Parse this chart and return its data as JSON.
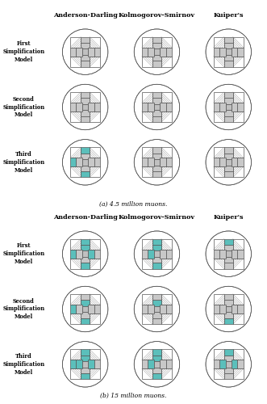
{
  "col_labels": [
    "Anderson-Darling",
    "Kolmogorov-Smirnov",
    "Kuiper's"
  ],
  "row_labels": [
    "First\nSimplification\nModel",
    "Second\nSimplification\nModel",
    "Third\nSimplification\nModel"
  ],
  "caption_a": "(a) 4.5 million muons.",
  "caption_b": "(b) 15 million muons.",
  "turquoise": "#5bbfbb",
  "gray_fa": "#c8c8c8",
  "gray_center": "#c0c0c0",
  "circle_edge": "#555555",
  "line_color": "#888888",
  "bg_color": "#ffffff",
  "rejected_4p5": [
    [
      [
        0,
        0,
        0,
        0,
        0,
        0,
        0,
        0,
        0,
        0,
        0,
        0,
        0
      ],
      [
        0,
        0,
        0,
        0,
        0,
        0,
        0,
        0,
        0,
        0,
        0,
        0,
        0
      ],
      [
        0,
        0,
        0,
        0,
        0,
        0,
        0,
        0,
        0,
        0,
        0,
        0,
        0
      ]
    ],
    [
      [
        0,
        0,
        0,
        0,
        0,
        0,
        0,
        0,
        0,
        0,
        0,
        0,
        0
      ],
      [
        0,
        0,
        0,
        0,
        0,
        0,
        0,
        0,
        0,
        0,
        0,
        0,
        0
      ],
      [
        0,
        0,
        0,
        0,
        0,
        0,
        0,
        0,
        0,
        0,
        0,
        0,
        0
      ]
    ],
    [
      [
        0,
        1,
        0,
        0,
        1,
        0,
        1,
        0,
        0,
        0,
        0,
        0,
        0
      ],
      [
        0,
        0,
        0,
        0,
        0,
        0,
        0,
        0,
        0,
        0,
        0,
        0,
        0
      ],
      [
        0,
        0,
        0,
        0,
        0,
        0,
        0,
        0,
        0,
        0,
        0,
        0,
        0
      ]
    ]
  ],
  "rejected_15": [
    [
      [
        1,
        1,
        0,
        0,
        1,
        0,
        1,
        1,
        0,
        0,
        1,
        1,
        0
      ],
      [
        1,
        1,
        0,
        0,
        1,
        1,
        0,
        0,
        0,
        0,
        1,
        0,
        0
      ],
      [
        0,
        1,
        0,
        0,
        0,
        0,
        0,
        0,
        0,
        0,
        1,
        0,
        0
      ]
    ],
    [
      [
        1,
        0,
        0,
        0,
        1,
        0,
        1,
        0,
        0,
        0,
        1,
        0,
        0
      ],
      [
        1,
        0,
        0,
        0,
        0,
        0,
        0,
        0,
        0,
        0,
        1,
        0,
        0
      ],
      [
        0,
        0,
        0,
        0,
        1,
        0,
        0,
        0,
        0,
        0,
        0,
        1,
        0
      ]
    ],
    [
      [
        1,
        1,
        0,
        0,
        1,
        1,
        1,
        1,
        0,
        0,
        1,
        1,
        0
      ],
      [
        1,
        1,
        0,
        0,
        1,
        1,
        0,
        0,
        0,
        0,
        0,
        0,
        0
      ],
      [
        0,
        1,
        0,
        0,
        0,
        1,
        0,
        1,
        0,
        0,
        1,
        1,
        0
      ]
    ]
  ]
}
